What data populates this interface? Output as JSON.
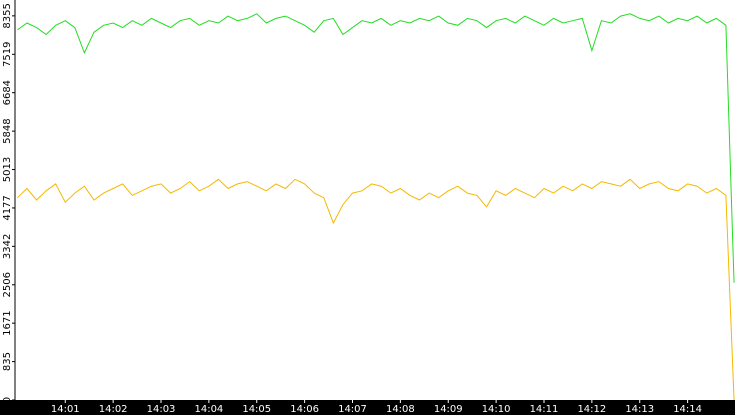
{
  "chart_data": {
    "type": "line",
    "x": [
      0,
      0.2,
      0.4,
      0.6,
      0.8,
      1,
      1.2,
      1.4,
      1.6,
      1.8,
      2,
      2.2,
      2.4,
      2.6,
      2.8,
      3,
      3.2,
      3.4,
      3.6,
      3.8,
      4,
      4.2,
      4.4,
      4.6,
      4.8,
      5,
      5.2,
      5.4,
      5.6,
      5.8,
      6,
      6.2,
      6.4,
      6.6,
      6.8,
      7,
      7.2,
      7.4,
      7.6,
      7.8,
      8,
      8.2,
      8.4,
      8.6,
      8.8,
      9,
      9.2,
      9.4,
      9.6,
      9.8,
      10,
      10.2,
      10.4,
      10.6,
      10.8,
      11,
      11.2,
      11.4,
      11.6,
      11.8,
      12,
      12.2,
      12.4,
      12.6,
      12.8,
      13,
      13.2,
      13.4,
      13.6,
      13.8,
      14,
      14.2,
      14.4,
      14.6,
      14.8,
      14.97
    ],
    "series": [
      {
        "color": "#22dd22",
        "values": [
          8050,
          8200,
          8100,
          7950,
          8150,
          8250,
          8100,
          7550,
          8000,
          8150,
          8200,
          8100,
          8250,
          8150,
          8300,
          8200,
          8100,
          8250,
          8300,
          8150,
          8250,
          8200,
          8350,
          8250,
          8300,
          8400,
          8200,
          8300,
          8350,
          8250,
          8150,
          8000,
          8250,
          8300,
          7950,
          8100,
          8250,
          8200,
          8300,
          8150,
          8250,
          8200,
          8300,
          8250,
          8350,
          8200,
          8150,
          8300,
          8250,
          8100,
          8250,
          8300,
          8200,
          8350,
          8250,
          8150,
          8300,
          8200,
          8250,
          8300,
          7600,
          8250,
          8200,
          8350,
          8400,
          8300,
          8250,
          8350,
          8200,
          8300,
          8250,
          8350,
          8200,
          8300,
          8150,
          2550
        ]
      },
      {
        "color": "#f5b800",
        "values": [
          4400,
          4600,
          4350,
          4550,
          4700,
          4300,
          4500,
          4650,
          4350,
          4500,
          4600,
          4700,
          4450,
          4550,
          4650,
          4700,
          4500,
          4600,
          4750,
          4550,
          4650,
          4800,
          4600,
          4700,
          4750,
          4650,
          4550,
          4700,
          4600,
          4800,
          4700,
          4500,
          4400,
          3850,
          4250,
          4500,
          4550,
          4700,
          4650,
          4500,
          4600,
          4450,
          4350,
          4500,
          4400,
          4550,
          4650,
          4500,
          4450,
          4200,
          4550,
          4450,
          4600,
          4500,
          4400,
          4600,
          4500,
          4650,
          4550,
          4700,
          4600,
          4750,
          4700,
          4650,
          4800,
          4600,
          4700,
          4750,
          4600,
          4550,
          4700,
          4650,
          4500,
          4600,
          4450,
          0
        ]
      }
    ],
    "xlim": [
      -0.05,
      14.99
    ],
    "xticks": [
      {
        "value": 1,
        "label": "14:01"
      },
      {
        "value": 2,
        "label": "14:02"
      },
      {
        "value": 3,
        "label": "14:03"
      },
      {
        "value": 4,
        "label": "14:04"
      },
      {
        "value": 5,
        "label": "14:05"
      },
      {
        "value": 6,
        "label": "14:06"
      },
      {
        "value": 7,
        "label": "14:07"
      },
      {
        "value": 8,
        "label": "14:08"
      },
      {
        "value": 9,
        "label": "14:09"
      },
      {
        "value": 10,
        "label": "14:10"
      },
      {
        "value": 11,
        "label": "14:11"
      },
      {
        "value": 12,
        "label": "14:12"
      },
      {
        "value": 13,
        "label": "14:13"
      },
      {
        "value": 14,
        "label": "14:14"
      }
    ],
    "ylim": [
      0,
      8700
    ],
    "yticks": [
      0,
      835,
      1671,
      2506,
      3342,
      4177,
      5013,
      5848,
      6684,
      7519,
      8355
    ]
  }
}
